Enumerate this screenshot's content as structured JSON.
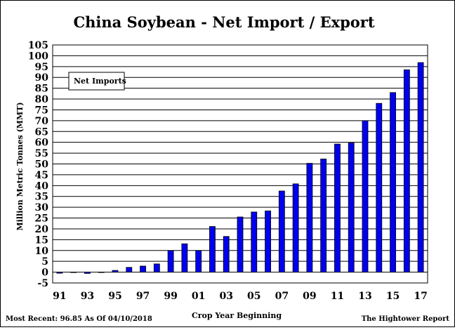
{
  "chart_data": {
    "type": "bar",
    "title": "China Soybean - Net Import / Export",
    "xlabel": "Crop Year Beginning",
    "ylabel": "Million Metric Tonnes (MMT)",
    "legend": [
      "Net Imports"
    ],
    "legend_position": "top-left",
    "ylim": [
      -5,
      105
    ],
    "ytick_step": 5,
    "ytick_labels": [
      "-5",
      "0",
      "5",
      "10",
      "15",
      "20",
      "25",
      "30",
      "35",
      "40",
      "45",
      "50",
      "55",
      "60",
      "65",
      "70",
      "75",
      "80",
      "85",
      "90",
      "95",
      "100",
      "105"
    ],
    "grid": true,
    "bar_color": "#0000ee",
    "categories": [
      "91",
      "92",
      "93",
      "94",
      "95",
      "96",
      "97",
      "98",
      "99",
      "00",
      "01",
      "02",
      "03",
      "04",
      "05",
      "06",
      "07",
      "08",
      "09",
      "10",
      "11",
      "12",
      "13",
      "14",
      "15",
      "16",
      "17"
    ],
    "xtick_labels": [
      "91",
      "93",
      "95",
      "97",
      "99",
      "01",
      "03",
      "05",
      "07",
      "09",
      "11",
      "13",
      "15",
      "17"
    ],
    "series": [
      {
        "name": "Net Imports",
        "values": [
          -0.5,
          0.0,
          -0.6,
          0.0,
          0.8,
          2.2,
          2.8,
          3.8,
          10.0,
          13.1,
          10.0,
          21.1,
          16.5,
          25.5,
          27.8,
          28.3,
          37.5,
          40.8,
          50.3,
          52.3,
          59.2,
          59.7,
          70.0,
          78.0,
          83.0,
          93.5,
          96.85
        ]
      }
    ]
  },
  "footer": {
    "most_recent": "Most Recent: 96.85 As Of 04/10/2018",
    "source": "The Hightower Report"
  }
}
